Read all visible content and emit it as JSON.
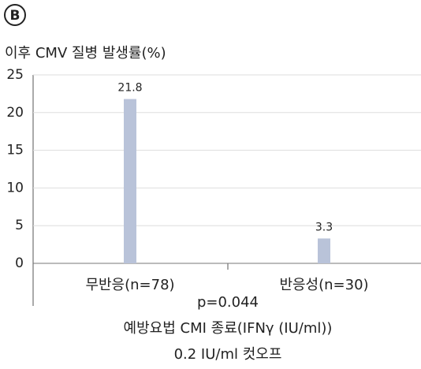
{
  "chart_data": {
    "type": "bar",
    "panel_label": "B",
    "ylabel": "이후 CMV 질병 발생률(%)",
    "categories": [
      "무반응(n=78)",
      "반응성(n=30)"
    ],
    "values": [
      21.8,
      3.3
    ],
    "color": "#b9c3d9",
    "ylim": [
      0,
      25
    ],
    "yticks": [
      0,
      5,
      10,
      15,
      20,
      25
    ],
    "grid": true,
    "annotation": "p=0.044",
    "xlabel": [
      "예방요법 CMI 종료(IFNγ (IU/ml))",
      "0.2 IU/ml 컷오프"
    ]
  }
}
